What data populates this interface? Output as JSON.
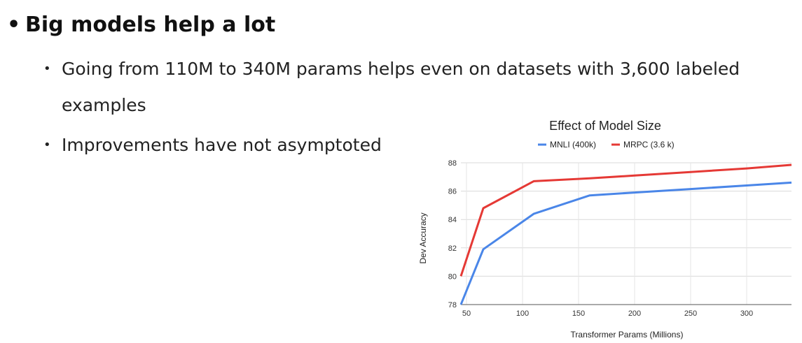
{
  "slide": {
    "bullet_main": "Big models help a lot",
    "sub1_line1": "Going from 110M to 340M params helps even on datasets with 3,600 labeled",
    "sub1_line2": "examples",
    "sub2": "Improvements have not asymptoted",
    "bullet_glyph": "•"
  },
  "chart_data": {
    "type": "line",
    "title": "Effect of Model Size",
    "xlabel": "Transformer Params (Millions)",
    "ylabel": "Dev Accuracy",
    "xlim": [
      45,
      340
    ],
    "ylim": [
      78,
      88
    ],
    "x_ticks": [
      50,
      100,
      150,
      200,
      250,
      300
    ],
    "y_ticks": [
      78,
      80,
      82,
      84,
      86,
      88
    ],
    "grid": true,
    "legend_position": "top",
    "series": [
      {
        "name": "MNLI (400k)",
        "color": "#4a86e8",
        "points": [
          [
            45,
            78.0
          ],
          [
            65,
            81.9
          ],
          [
            110,
            84.4
          ],
          [
            160,
            85.7
          ],
          [
            200,
            85.9
          ],
          [
            250,
            86.15
          ],
          [
            300,
            86.4
          ],
          [
            340,
            86.6
          ]
        ]
      },
      {
        "name": "MRPC (3.6 k)",
        "color": "#e53935",
        "points": [
          [
            45,
            80.0
          ],
          [
            65,
            84.8
          ],
          [
            110,
            86.7
          ],
          [
            160,
            86.9
          ],
          [
            200,
            87.1
          ],
          [
            250,
            87.35
          ],
          [
            300,
            87.6
          ],
          [
            340,
            87.85
          ]
        ]
      }
    ]
  }
}
